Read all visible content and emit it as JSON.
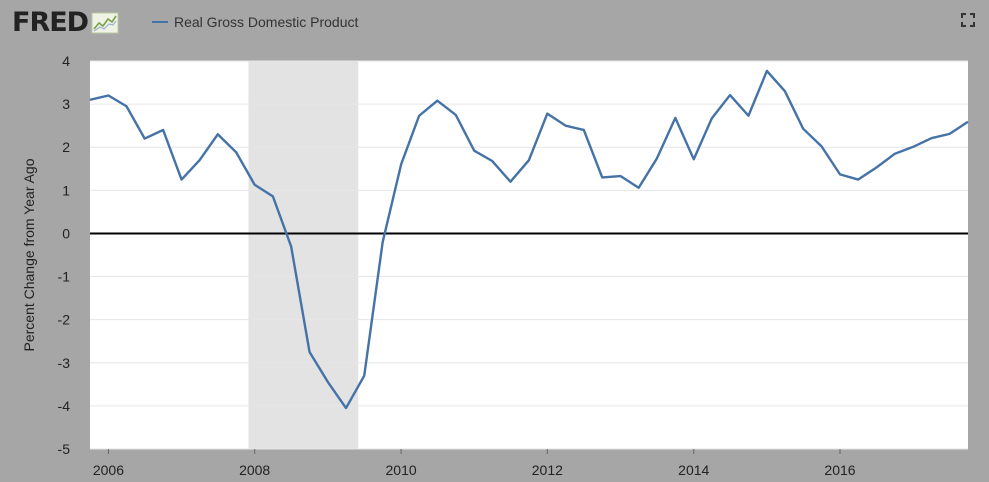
{
  "header": {
    "logo_text": "FRED",
    "logo_icon": "line-chart-icon",
    "fullscreen_icon": "fullscreen-expand-icon"
  },
  "chart_data": {
    "type": "line",
    "title": "",
    "xlabel": "",
    "ylabel": "Percent Change from Year Ago",
    "ylim": [
      -5,
      4
    ],
    "xlim": [
      "2005-10-01",
      "2017-10-01"
    ],
    "grid": true,
    "legend": "top-left",
    "x_ticks": [
      "2006",
      "2008",
      "2010",
      "2012",
      "2014",
      "2016"
    ],
    "y_ticks": [
      "4",
      "3",
      "2",
      "1",
      "0",
      "-1",
      "-2",
      "-3",
      "-4",
      "-5"
    ],
    "recession": {
      "start": "2007-12-01",
      "end": "2009-06-01",
      "color": "#e3e3e3"
    },
    "colors": {
      "line": "#4572a7",
      "zero_line": "#000000",
      "grid": "#e6e6e6",
      "panel": "#ffffff",
      "frame": "#a6a6a6"
    },
    "series": [
      {
        "name": "Real Gross Domestic Product",
        "x": [
          "2005-10-01",
          "2006-01-01",
          "2006-04-01",
          "2006-07-01",
          "2006-10-01",
          "2007-01-01",
          "2007-04-01",
          "2007-07-01",
          "2007-10-01",
          "2008-01-01",
          "2008-04-01",
          "2008-07-01",
          "2008-10-01",
          "2009-01-01",
          "2009-04-01",
          "2009-07-01",
          "2009-10-01",
          "2010-01-01",
          "2010-04-01",
          "2010-07-01",
          "2010-10-01",
          "2011-01-01",
          "2011-04-01",
          "2011-07-01",
          "2011-10-01",
          "2012-01-01",
          "2012-04-01",
          "2012-07-01",
          "2012-10-01",
          "2013-01-01",
          "2013-04-01",
          "2013-07-01",
          "2013-10-01",
          "2014-01-01",
          "2014-04-01",
          "2014-07-01",
          "2014-10-01",
          "2015-01-01",
          "2015-04-01",
          "2015-07-01",
          "2015-10-01",
          "2016-01-01",
          "2016-04-01",
          "2016-07-01",
          "2016-10-01",
          "2017-01-01",
          "2017-04-01",
          "2017-07-01",
          "2017-10-01"
        ],
        "values": [
          3.1,
          3.2,
          2.95,
          2.2,
          2.4,
          1.25,
          1.7,
          2.3,
          1.88,
          1.13,
          0.86,
          -0.3,
          -2.75,
          -3.45,
          -4.05,
          -3.3,
          -0.2,
          1.6,
          2.73,
          3.08,
          2.75,
          1.92,
          1.68,
          1.2,
          1.7,
          2.78,
          2.5,
          2.4,
          1.3,
          1.33,
          1.06,
          1.74,
          2.68,
          1.72,
          2.67,
          3.21,
          2.73,
          3.77,
          3.3,
          2.43,
          2.02,
          1.37,
          1.25,
          1.53,
          1.85,
          2.01,
          2.21,
          2.31,
          2.59
        ]
      }
    ]
  }
}
